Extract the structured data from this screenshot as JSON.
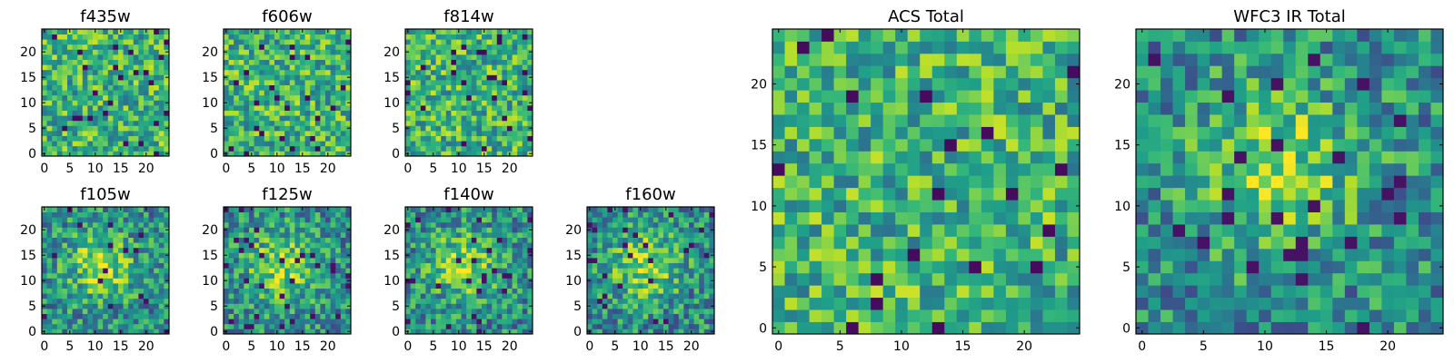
{
  "chart_data": [
    {
      "type": "heatmap",
      "title": "f435w",
      "pattern": "noise",
      "seed": 11,
      "grid_size": 25,
      "xlim": [
        0,
        24
      ],
      "ylim": [
        0,
        24
      ],
      "xticks": [
        0,
        5,
        10,
        15,
        20
      ],
      "yticks": [
        0,
        5,
        10,
        15,
        20
      ],
      "colormap": "viridis"
    },
    {
      "type": "heatmap",
      "title": "f606w",
      "pattern": "noise",
      "seed": 23,
      "grid_size": 25,
      "xlim": [
        0,
        24
      ],
      "ylim": [
        0,
        24
      ],
      "xticks": [
        0,
        5,
        10,
        15,
        20
      ],
      "yticks": [
        0,
        5,
        10,
        15,
        20
      ],
      "colormap": "viridis"
    },
    {
      "type": "heatmap",
      "title": "f814w",
      "pattern": "noise",
      "seed": 37,
      "grid_size": 25,
      "xlim": [
        0,
        24
      ],
      "ylim": [
        0,
        24
      ],
      "xticks": [
        0,
        5,
        10,
        15,
        20
      ],
      "yticks": [
        0,
        5,
        10,
        15,
        20
      ],
      "colormap": "viridis"
    },
    {
      "type": "heatmap",
      "title": "f105w",
      "pattern": "source",
      "seed": 41,
      "grid_size": 25,
      "xlim": [
        0,
        24
      ],
      "ylim": [
        0,
        24
      ],
      "xticks": [
        0,
        5,
        10,
        15,
        20
      ],
      "yticks": [
        0,
        5,
        10,
        15,
        20
      ],
      "colormap": "viridis"
    },
    {
      "type": "heatmap",
      "title": "f125w",
      "pattern": "source",
      "seed": 53,
      "grid_size": 25,
      "xlim": [
        0,
        24
      ],
      "ylim": [
        0,
        24
      ],
      "xticks": [
        0,
        5,
        10,
        15,
        20
      ],
      "yticks": [
        0,
        5,
        10,
        15,
        20
      ],
      "colormap": "viridis"
    },
    {
      "type": "heatmap",
      "title": "f140w",
      "pattern": "source",
      "seed": 67,
      "grid_size": 25,
      "xlim": [
        0,
        24
      ],
      "ylim": [
        0,
        24
      ],
      "xticks": [
        0,
        5,
        10,
        15,
        20
      ],
      "yticks": [
        0,
        5,
        10,
        15,
        20
      ],
      "colormap": "viridis"
    },
    {
      "type": "heatmap",
      "title": "f160w",
      "pattern": "source",
      "seed": 79,
      "grid_size": 25,
      "xlim": [
        0,
        24
      ],
      "ylim": [
        0,
        24
      ],
      "xticks": [
        0,
        5,
        10,
        15,
        20
      ],
      "yticks": [
        0,
        5,
        10,
        15,
        20
      ],
      "colormap": "viridis"
    },
    {
      "type": "heatmap",
      "title": "ACS Total",
      "pattern": "noise",
      "seed": 97,
      "grid_size": 25,
      "xlim": [
        0,
        24
      ],
      "ylim": [
        0,
        24
      ],
      "xticks": [
        0,
        5,
        10,
        15,
        20
      ],
      "yticks": [
        0,
        5,
        10,
        15,
        20
      ],
      "colormap": "viridis"
    },
    {
      "type": "heatmap",
      "title": "WFC3 IR Total",
      "pattern": "source",
      "seed": 101,
      "grid_size": 25,
      "xlim": [
        0,
        24
      ],
      "ylim": [
        0,
        24
      ],
      "xticks": [
        0,
        5,
        10,
        15,
        20
      ],
      "yticks": [
        0,
        5,
        10,
        15,
        20
      ],
      "colormap": "viridis"
    }
  ]
}
